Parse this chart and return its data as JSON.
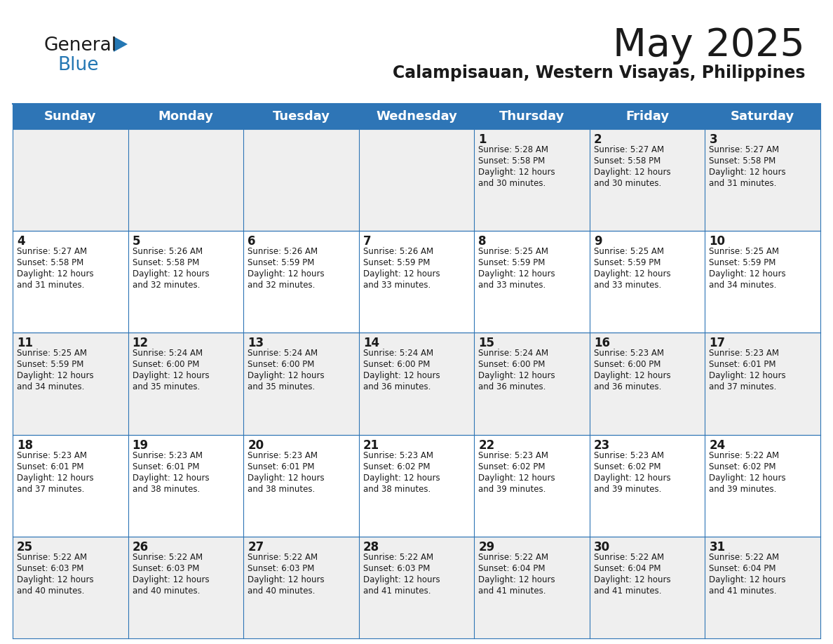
{
  "title": "May 2025",
  "subtitle": "Calampisauan, Western Visayas, Philippines",
  "header_bg_color": "#2E75B6",
  "header_text_color": "#FFFFFF",
  "cell_bg_even": "#EFEFEF",
  "cell_bg_odd": "#FFFFFF",
  "border_color": "#2E75B6",
  "text_color": "#1a1a1a",
  "day_headers": [
    "Sunday",
    "Monday",
    "Tuesday",
    "Wednesday",
    "Thursday",
    "Friday",
    "Saturday"
  ],
  "weeks": [
    [
      {
        "day": "",
        "info": ""
      },
      {
        "day": "",
        "info": ""
      },
      {
        "day": "",
        "info": ""
      },
      {
        "day": "",
        "info": ""
      },
      {
        "day": "1",
        "info": "Sunrise: 5:28 AM\nSunset: 5:58 PM\nDaylight: 12 hours\nand 30 minutes."
      },
      {
        "day": "2",
        "info": "Sunrise: 5:27 AM\nSunset: 5:58 PM\nDaylight: 12 hours\nand 30 minutes."
      },
      {
        "day": "3",
        "info": "Sunrise: 5:27 AM\nSunset: 5:58 PM\nDaylight: 12 hours\nand 31 minutes."
      }
    ],
    [
      {
        "day": "4",
        "info": "Sunrise: 5:27 AM\nSunset: 5:58 PM\nDaylight: 12 hours\nand 31 minutes."
      },
      {
        "day": "5",
        "info": "Sunrise: 5:26 AM\nSunset: 5:58 PM\nDaylight: 12 hours\nand 32 minutes."
      },
      {
        "day": "6",
        "info": "Sunrise: 5:26 AM\nSunset: 5:59 PM\nDaylight: 12 hours\nand 32 minutes."
      },
      {
        "day": "7",
        "info": "Sunrise: 5:26 AM\nSunset: 5:59 PM\nDaylight: 12 hours\nand 33 minutes."
      },
      {
        "day": "8",
        "info": "Sunrise: 5:25 AM\nSunset: 5:59 PM\nDaylight: 12 hours\nand 33 minutes."
      },
      {
        "day": "9",
        "info": "Sunrise: 5:25 AM\nSunset: 5:59 PM\nDaylight: 12 hours\nand 33 minutes."
      },
      {
        "day": "10",
        "info": "Sunrise: 5:25 AM\nSunset: 5:59 PM\nDaylight: 12 hours\nand 34 minutes."
      }
    ],
    [
      {
        "day": "11",
        "info": "Sunrise: 5:25 AM\nSunset: 5:59 PM\nDaylight: 12 hours\nand 34 minutes."
      },
      {
        "day": "12",
        "info": "Sunrise: 5:24 AM\nSunset: 6:00 PM\nDaylight: 12 hours\nand 35 minutes."
      },
      {
        "day": "13",
        "info": "Sunrise: 5:24 AM\nSunset: 6:00 PM\nDaylight: 12 hours\nand 35 minutes."
      },
      {
        "day": "14",
        "info": "Sunrise: 5:24 AM\nSunset: 6:00 PM\nDaylight: 12 hours\nand 36 minutes."
      },
      {
        "day": "15",
        "info": "Sunrise: 5:24 AM\nSunset: 6:00 PM\nDaylight: 12 hours\nand 36 minutes."
      },
      {
        "day": "16",
        "info": "Sunrise: 5:23 AM\nSunset: 6:00 PM\nDaylight: 12 hours\nand 36 minutes."
      },
      {
        "day": "17",
        "info": "Sunrise: 5:23 AM\nSunset: 6:01 PM\nDaylight: 12 hours\nand 37 minutes."
      }
    ],
    [
      {
        "day": "18",
        "info": "Sunrise: 5:23 AM\nSunset: 6:01 PM\nDaylight: 12 hours\nand 37 minutes."
      },
      {
        "day": "19",
        "info": "Sunrise: 5:23 AM\nSunset: 6:01 PM\nDaylight: 12 hours\nand 38 minutes."
      },
      {
        "day": "20",
        "info": "Sunrise: 5:23 AM\nSunset: 6:01 PM\nDaylight: 12 hours\nand 38 minutes."
      },
      {
        "day": "21",
        "info": "Sunrise: 5:23 AM\nSunset: 6:02 PM\nDaylight: 12 hours\nand 38 minutes."
      },
      {
        "day": "22",
        "info": "Sunrise: 5:23 AM\nSunset: 6:02 PM\nDaylight: 12 hours\nand 39 minutes."
      },
      {
        "day": "23",
        "info": "Sunrise: 5:23 AM\nSunset: 6:02 PM\nDaylight: 12 hours\nand 39 minutes."
      },
      {
        "day": "24",
        "info": "Sunrise: 5:22 AM\nSunset: 6:02 PM\nDaylight: 12 hours\nand 39 minutes."
      }
    ],
    [
      {
        "day": "25",
        "info": "Sunrise: 5:22 AM\nSunset: 6:03 PM\nDaylight: 12 hours\nand 40 minutes."
      },
      {
        "day": "26",
        "info": "Sunrise: 5:22 AM\nSunset: 6:03 PM\nDaylight: 12 hours\nand 40 minutes."
      },
      {
        "day": "27",
        "info": "Sunrise: 5:22 AM\nSunset: 6:03 PM\nDaylight: 12 hours\nand 40 minutes."
      },
      {
        "day": "28",
        "info": "Sunrise: 5:22 AM\nSunset: 6:03 PM\nDaylight: 12 hours\nand 41 minutes."
      },
      {
        "day": "29",
        "info": "Sunrise: 5:22 AM\nSunset: 6:04 PM\nDaylight: 12 hours\nand 41 minutes."
      },
      {
        "day": "30",
        "info": "Sunrise: 5:22 AM\nSunset: 6:04 PM\nDaylight: 12 hours\nand 41 minutes."
      },
      {
        "day": "31",
        "info": "Sunrise: 5:22 AM\nSunset: 6:04 PM\nDaylight: 12 hours\nand 41 minutes."
      }
    ]
  ],
  "logo_general_color": "#1a1a1a",
  "logo_blue_color": "#2477B3",
  "logo_triangle_color": "#2477B3"
}
